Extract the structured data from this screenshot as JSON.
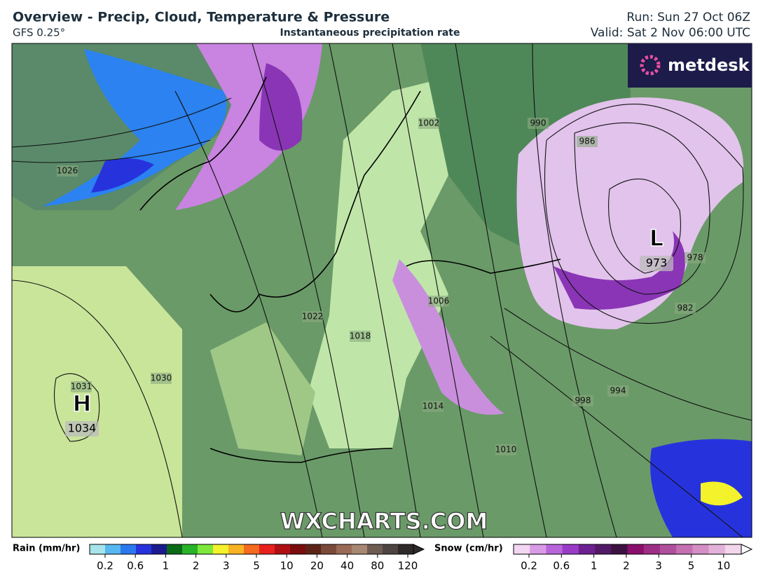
{
  "header": {
    "title": "Overview - Precip, Cloud, Temperature & Pressure",
    "model": "GFS 0.25°",
    "subtitle": "Instantaneous precipitation rate",
    "run": "Run: Sun 27 Oct 06Z",
    "valid": "Valid: Sat 2 Nov 06:00 UTC"
  },
  "brand": "metdesk",
  "watermark": "WXCHARTS.COM",
  "pressure_systems": [
    {
      "symbol": "H",
      "value": "1034"
    },
    {
      "symbol": "L",
      "value": "973"
    }
  ],
  "isobar_labels": [
    "1026",
    "1031",
    "1030",
    "1022",
    "1018",
    "1006",
    "1002",
    "990",
    "986",
    "978",
    "982",
    "994",
    "998",
    "1014",
    "1010"
  ],
  "legend": {
    "rain": {
      "label": "Rain (mm/hr)",
      "ticks": [
        "0.2",
        "0.6",
        "1",
        "2",
        "3",
        "5",
        "10",
        "20",
        "40",
        "80",
        "120"
      ],
      "colors": [
        "#a6e3ea",
        "#57b7f0",
        "#2b78ef",
        "#2633dd",
        "#1b1b8f",
        "#0a6a18",
        "#28b328",
        "#7de83a",
        "#f4f22a",
        "#f7b322",
        "#f46a1e",
        "#e8201e",
        "#b00f14",
        "#7a0c0e",
        "#5c2418",
        "#7c4a3a",
        "#9a6a56",
        "#a88872",
        "#6e5c52",
        "#4e4542",
        "#2e2a2a"
      ]
    },
    "snow": {
      "label": "Snow (cm/hr)",
      "ticks": [
        "0.2",
        "0.6",
        "1",
        "2",
        "3",
        "5",
        "10"
      ],
      "colors": [
        "#f3d6f3",
        "#d99be6",
        "#b865d9",
        "#9a3bc8",
        "#6d2190",
        "#521a66",
        "#3c1240",
        "#8b0f6c",
        "#9d2e86",
        "#b0509c",
        "#c470b2",
        "#d48ec4",
        "#e3b2d8",
        "#f2d6ec"
      ]
    }
  }
}
